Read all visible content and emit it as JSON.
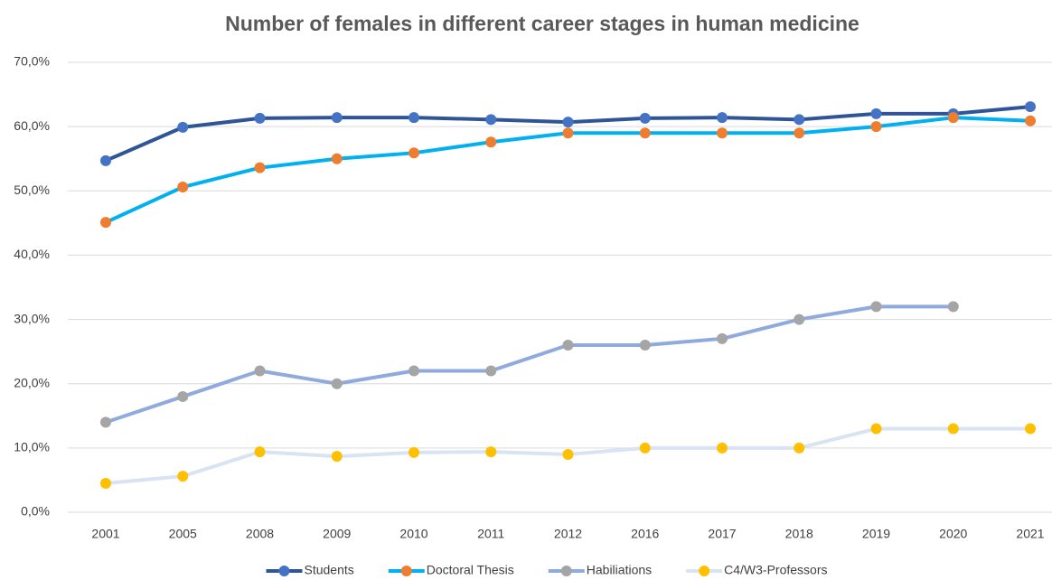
{
  "chart_data": {
    "type": "line",
    "title": "Number of females in different career stages in human medicine",
    "categories": [
      "2001",
      "2005",
      "2008",
      "2009",
      "2010",
      "2011",
      "2012",
      "2016",
      "2017",
      "2018",
      "2019",
      "2020",
      "2021"
    ],
    "series": [
      {
        "name": "Students",
        "color": "#2f5597",
        "marker_color": "#4472c4",
        "values": [
          54.7,
          59.9,
          61.3,
          61.4,
          61.4,
          61.1,
          60.7,
          61.3,
          61.4,
          61.1,
          62.0,
          62.0,
          63.1
        ]
      },
      {
        "name": "Doctoral Thesis",
        "color": "#00b0f0",
        "marker_color": "#ed7d31",
        "values": [
          45.1,
          50.6,
          53.6,
          55.0,
          55.9,
          57.6,
          59.0,
          59.0,
          59.0,
          59.0,
          60.0,
          61.4,
          60.9
        ]
      },
      {
        "name": "Habiliations",
        "color": "#8faadc",
        "marker_color": "#a5a5a5",
        "values": [
          14,
          18,
          22,
          20,
          22,
          22,
          26,
          26,
          27,
          30,
          32,
          32,
          null
        ]
      },
      {
        "name": "C4/W3-Professors",
        "color": "#dae3f3",
        "marker_color": "#ffc000",
        "values": [
          4.5,
          5.6,
          9.4,
          8.7,
          9.3,
          9.4,
          9.0,
          10,
          10,
          10,
          13,
          13,
          13
        ]
      }
    ],
    "ylim": [
      0,
      70
    ],
    "yticks": [
      {
        "value": 0,
        "label": "0,0%"
      },
      {
        "value": 10,
        "label": "10,0%"
      },
      {
        "value": 20,
        "label": "20,0%"
      },
      {
        "value": 30,
        "label": "30,0%"
      },
      {
        "value": 40,
        "label": "40,0%"
      },
      {
        "value": 50,
        "label": "50,0%"
      },
      {
        "value": 60,
        "label": "60,0%"
      },
      {
        "value": 70,
        "label": "70,0%"
      }
    ],
    "grid": true,
    "legend": "bottom"
  }
}
